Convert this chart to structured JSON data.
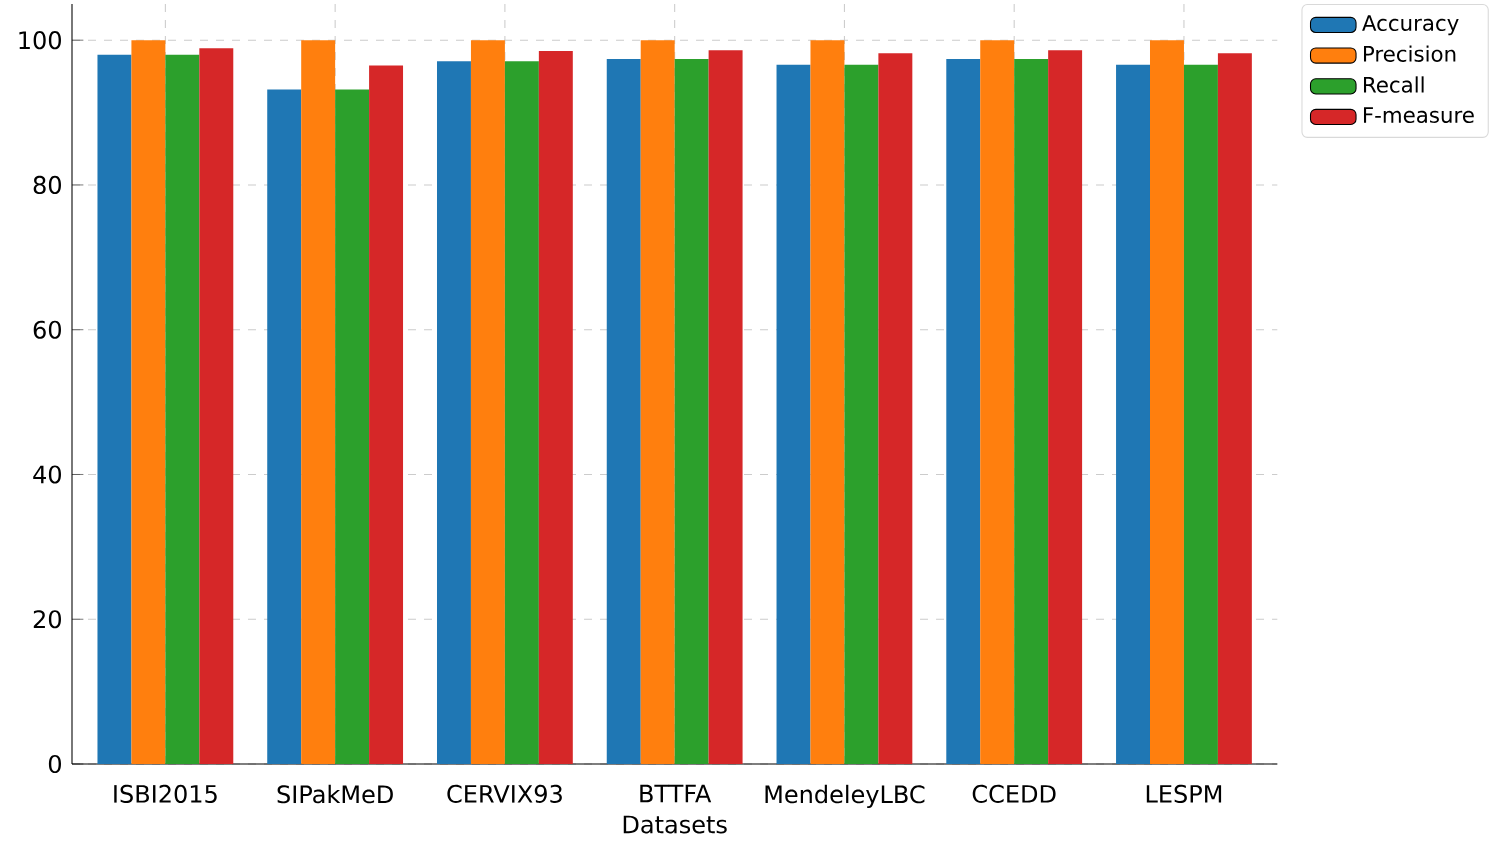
{
  "chart_data": {
    "type": "bar",
    "xlabel": "Datasets",
    "categories": [
      "ISBI2015",
      "SIPakMeD",
      "CERVIX93",
      "BTTFA",
      "MendeleyLBC",
      "CCEDD",
      "LESPM"
    ],
    "series": [
      {
        "name": "Accuracy",
        "color": "#1f77b4",
        "values": [
          98.0,
          93.2,
          97.1,
          97.4,
          96.6,
          97.4,
          96.6
        ]
      },
      {
        "name": "Precision",
        "color": "#ff7f0e",
        "values": [
          100,
          100,
          100,
          100,
          100,
          100,
          100
        ]
      },
      {
        "name": "Recall",
        "color": "#2ca02c",
        "values": [
          98.0,
          93.2,
          97.1,
          97.4,
          96.6,
          97.4,
          96.6
        ]
      },
      {
        "name": "F-measure",
        "color": "#d62728",
        "values": [
          98.9,
          96.5,
          98.5,
          98.6,
          98.2,
          98.6,
          98.2
        ]
      }
    ],
    "ylim": [
      0,
      105
    ],
    "yticks": [
      0,
      20,
      40,
      60,
      80,
      100
    ],
    "grid": true,
    "legend": "right"
  }
}
